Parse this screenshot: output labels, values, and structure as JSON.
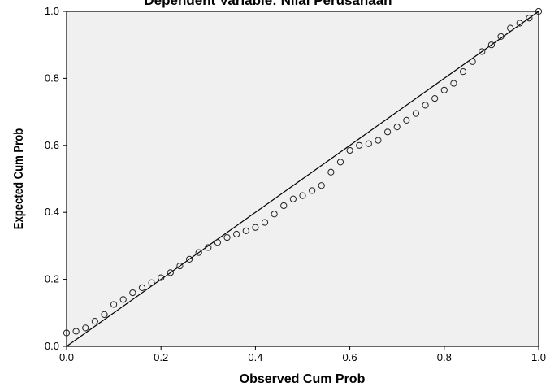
{
  "chart_data": {
    "type": "scatter",
    "title": "Dependent Variable: Nilai Perusahaan",
    "xlabel": "Observed Cum Prob",
    "ylabel": "Expected Cum Prob",
    "xlim": [
      0,
      1
    ],
    "ylim": [
      0,
      1
    ],
    "xticks": [
      "0.0",
      "0.2",
      "0.4",
      "0.6",
      "0.8",
      "1.0"
    ],
    "yticks": [
      "0.0",
      "0.2",
      "0.4",
      "0.6",
      "0.8",
      "1.0"
    ],
    "grid": false,
    "legend": "none",
    "plot_background": "#f0f0f0",
    "marker_style": "open-circle",
    "reference_line": {
      "from": [
        0,
        0
      ],
      "to": [
        1,
        1
      ]
    },
    "series": [
      {
        "x": [
          0.0,
          0.02,
          0.04,
          0.06,
          0.08,
          0.1,
          0.12,
          0.14,
          0.16,
          0.18,
          0.2,
          0.22,
          0.24,
          0.26,
          0.28,
          0.3,
          0.32,
          0.34,
          0.36,
          0.38,
          0.4,
          0.42,
          0.44,
          0.46,
          0.48,
          0.5,
          0.52,
          0.54,
          0.56,
          0.58,
          0.6,
          0.62,
          0.64,
          0.66,
          0.68,
          0.7,
          0.72,
          0.74,
          0.76,
          0.78,
          0.8,
          0.82,
          0.84,
          0.86,
          0.88,
          0.9,
          0.92,
          0.94,
          0.96,
          0.98,
          1.0
        ],
        "y": [
          0.04,
          0.045,
          0.055,
          0.075,
          0.095,
          0.125,
          0.14,
          0.16,
          0.175,
          0.19,
          0.205,
          0.22,
          0.24,
          0.26,
          0.28,
          0.295,
          0.31,
          0.325,
          0.335,
          0.345,
          0.355,
          0.37,
          0.395,
          0.42,
          0.44,
          0.45,
          0.465,
          0.48,
          0.52,
          0.55,
          0.585,
          0.6,
          0.605,
          0.615,
          0.64,
          0.655,
          0.675,
          0.695,
          0.72,
          0.74,
          0.765,
          0.785,
          0.82,
          0.85,
          0.88,
          0.9,
          0.925,
          0.95,
          0.965,
          0.98,
          1.0
        ]
      }
    ]
  }
}
